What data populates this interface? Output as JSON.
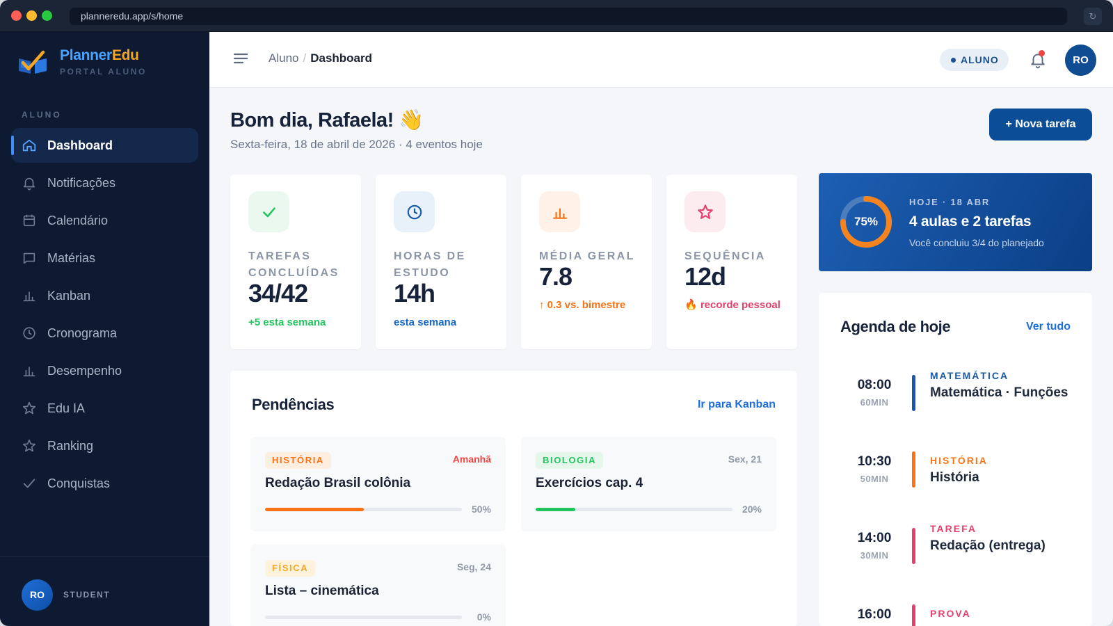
{
  "browser": {
    "url": "planneredu.app/s/home",
    "reload_icon": "reload-icon"
  },
  "brand": {
    "name_part1": "Planner",
    "name_part2": "Edu",
    "subtitle": "PORTAL ALUNO"
  },
  "sidebar": {
    "section_label": "ALUNO",
    "items": [
      {
        "label": "Dashboard",
        "icon": "home-icon",
        "active": true
      },
      {
        "label": "Notificações",
        "icon": "bell-icon"
      },
      {
        "label": "Calendário",
        "icon": "calendar-icon"
      },
      {
        "label": "Matérias",
        "icon": "book-icon"
      },
      {
        "label": "Kanban",
        "icon": "bar-chart-icon"
      },
      {
        "label": "Cronograma",
        "icon": "clock-icon"
      },
      {
        "label": "Desempenho",
        "icon": "bar-chart-icon"
      },
      {
        "label": "Edu IA",
        "icon": "star-icon"
      },
      {
        "label": "Ranking",
        "icon": "star-icon"
      },
      {
        "label": "Conquistas",
        "icon": "check-icon"
      }
    ],
    "footer": {
      "avatar_initials": "RO",
      "role": "STUDENT"
    }
  },
  "header": {
    "breadcrumb": {
      "parent": "Aluno",
      "separator": "/",
      "current": "Dashboard"
    },
    "role_badge": "ALUNO",
    "avatar_initials": "RO"
  },
  "main": {
    "greeting": "Bom dia, Rafaela! 👋",
    "subtitle": "Sexta-feira, 18 de abril de 2026 · 4 eventos hoje",
    "new_task_label": "+ Nova tarefa",
    "stats": [
      {
        "label": "TAREFAS CONCLUÍDAS",
        "value": "34/42",
        "note": "+5 esta semana",
        "note_color": "#22c55e",
        "icon": "check-icon",
        "icon_bg": "#eaf8ef",
        "icon_color": "#22c55e"
      },
      {
        "label": "HORAS DE ESTUDO",
        "value": "14h",
        "note": "esta semana",
        "note_color": "#1565c0",
        "icon": "clock-icon",
        "icon_bg": "#e8f0fa",
        "icon_color": "#1559a8"
      },
      {
        "label": "MÉDIA GERAL",
        "value": "7.8",
        "note": "↑ 0.3 vs. bimestre",
        "note_color": "#f97316",
        "icon": "bar-chart-icon",
        "icon_bg": "#fef1e7",
        "icon_color": "#f97316"
      },
      {
        "label": "SEQUÊNCIA",
        "value": "12d",
        "note": "🔥 recorde pessoal",
        "note_color": "#e4406d",
        "icon": "star-icon",
        "icon_bg": "#fdecef",
        "icon_color": "#e4406d"
      }
    ],
    "today": {
      "eyebrow": "HOJE · 18 ABR",
      "title": "4 aulas e 2 tarefas",
      "subtitle": "Você concluiu 3/4 do planejado",
      "progress_label": "75%",
      "progress": 0.75
    },
    "pending": {
      "title": "Pendências",
      "link": "Ir para Kanban",
      "tasks": [
        {
          "tag": "HISTÓRIA",
          "tag_color": "#f97316",
          "tag_bg": "#fdeee2",
          "due": "Amanhã",
          "due_color": "#ef4444",
          "title": "Redação Brasil colônia",
          "progress": 0.5,
          "progress_label": "50%",
          "bar_color": "#f97316"
        },
        {
          "tag": "BIOLOGIA",
          "tag_color": "#22c55e",
          "tag_bg": "#e5f6ea",
          "due": "Sex, 21",
          "due_color": "#8f99a8",
          "title": "Exercícios cap. 4",
          "progress": 0.2,
          "progress_label": "20%",
          "bar_color": "#22c55e"
        },
        {
          "tag": "FÍSICA",
          "tag_color": "#f5a623",
          "tag_bg": "#fdf3dd",
          "due": "Seg, 24",
          "due_color": "#8f99a8",
          "title": "Lista – cinemática",
          "progress": 0,
          "progress_label": "0%",
          "bar_color": "#f5a623"
        }
      ]
    },
    "agenda": {
      "title": "Agenda de hoje",
      "link": "Ver tudo",
      "events": [
        {
          "time": "08:00",
          "duration": "60MIN",
          "category": "MATEMÁTICA",
          "color": "#1559a8",
          "name": "Matemática · Funções"
        },
        {
          "time": "10:30",
          "duration": "50MIN",
          "category": "HISTÓRIA",
          "color": "#f97316",
          "name": "História"
        },
        {
          "time": "14:00",
          "duration": "30MIN",
          "category": "TAREFA",
          "color": "#e4406d",
          "name": "Redação (entrega)"
        },
        {
          "time": "16:00",
          "duration": "",
          "category": "PROVA",
          "color": "#e4406d",
          "name": ""
        }
      ]
    }
  }
}
